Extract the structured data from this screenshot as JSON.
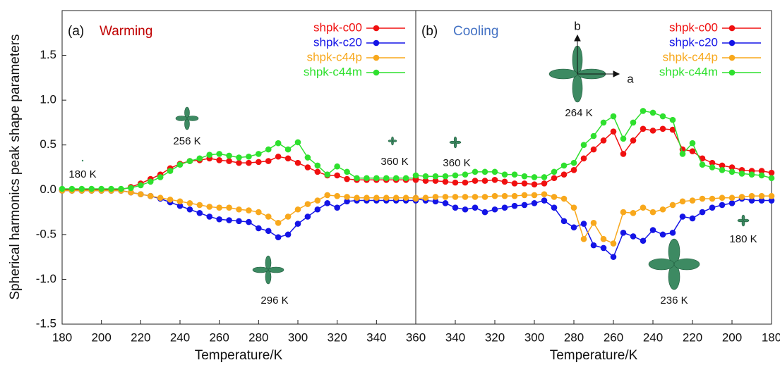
{
  "chart_data": [
    {
      "type": "line",
      "panel": "(a)",
      "title": "Warming",
      "ylabel": "Spherical harmonics peak shape parameters",
      "xlabel": "Temperature/K",
      "xlim": [
        180,
        360
      ],
      "xticks": [
        180,
        200,
        220,
        240,
        260,
        280,
        300,
        320,
        340
      ],
      "ylim": [
        -1.5,
        2.0
      ],
      "yticks": [
        {
          "value": -1.5,
          "label": "-1.5"
        },
        {
          "value": -1,
          "label": "-1.0"
        },
        -0.5,
        {
          "value": 0,
          "label": "0.0"
        },
        0.5,
        {
          "value": 1,
          "label": "1.0"
        },
        1.5
      ],
      "x": [
        180,
        185,
        190,
        195,
        200,
        205,
        210,
        215,
        220,
        225,
        230,
        235,
        240,
        245,
        250,
        255,
        260,
        265,
        270,
        275,
        280,
        285,
        290,
        295,
        300,
        305,
        310,
        315,
        320,
        325,
        330,
        335,
        340,
        345,
        350,
        355,
        360
      ],
      "series": [
        {
          "name": "shpk-c00",
          "color": "#f01010",
          "values": [
            0,
            0,
            0,
            0,
            0,
            0,
            0,
            0.03,
            0.07,
            0.12,
            0.17,
            0.24,
            0.29,
            0.32,
            0.33,
            0.35,
            0.33,
            0.32,
            0.3,
            0.3,
            0.31,
            0.32,
            0.37,
            0.35,
            0.3,
            0.25,
            0.2,
            0.16,
            0.16,
            0.12,
            0.11,
            0.11,
            0.11,
            0.11,
            0.11,
            0.11,
            0.11
          ]
        },
        {
          "name": "shpk-c20",
          "color": "#1414e6",
          "values": [
            -0.01,
            -0.01,
            -0.01,
            -0.01,
            -0.01,
            -0.01,
            -0.01,
            -0.03,
            -0.05,
            -0.07,
            -0.1,
            -0.14,
            -0.18,
            -0.22,
            -0.26,
            -0.3,
            -0.33,
            -0.34,
            -0.35,
            -0.36,
            -0.43,
            -0.46,
            -0.53,
            -0.5,
            -0.38,
            -0.3,
            -0.22,
            -0.15,
            -0.2,
            -0.13,
            -0.12,
            -0.12,
            -0.12,
            -0.12,
            -0.12,
            -0.12,
            -0.12
          ]
        },
        {
          "name": "shpk-c44p",
          "color": "#f8a81c",
          "values": [
            -0.01,
            -0.01,
            -0.01,
            -0.01,
            -0.01,
            -0.01,
            -0.01,
            -0.03,
            -0.05,
            -0.07,
            -0.09,
            -0.11,
            -0.13,
            -0.15,
            -0.17,
            -0.19,
            -0.2,
            -0.2,
            -0.22,
            -0.23,
            -0.25,
            -0.3,
            -0.37,
            -0.3,
            -0.22,
            -0.16,
            -0.12,
            -0.06,
            -0.07,
            -0.08,
            -0.09,
            -0.09,
            -0.09,
            -0.09,
            -0.09,
            -0.09,
            -0.09
          ]
        },
        {
          "name": "shpk-c44m",
          "color": "#2ee02e",
          "values": [
            0.01,
            0.01,
            0.01,
            0.01,
            0.01,
            0.01,
            0.01,
            0.02,
            0.05,
            0.09,
            0.14,
            0.21,
            0.28,
            0.32,
            0.35,
            0.39,
            0.4,
            0.38,
            0.36,
            0.37,
            0.4,
            0.45,
            0.52,
            0.45,
            0.53,
            0.36,
            0.27,
            0.17,
            0.26,
            0.2,
            0.13,
            0.13,
            0.13,
            0.13,
            0.13,
            0.13,
            0.13
          ]
        }
      ],
      "annotations": [
        "256 K",
        "180 K",
        "360 K",
        "296 K"
      ]
    },
    {
      "type": "line",
      "panel": "(b)",
      "title": "Cooling",
      "xlabel": "Temperature/K",
      "xlim": [
        360,
        180
      ],
      "xticks": [
        360,
        340,
        320,
        300,
        280,
        260,
        240,
        220,
        200,
        180
      ],
      "ylim": [
        -1.5,
        2.0
      ],
      "x": [
        360,
        355,
        350,
        345,
        340,
        335,
        330,
        325,
        320,
        315,
        310,
        305,
        300,
        295,
        290,
        285,
        280,
        275,
        270,
        265,
        260,
        255,
        250,
        245,
        240,
        235,
        230,
        225,
        220,
        215,
        210,
        205,
        200,
        195,
        190,
        185,
        180
      ],
      "series": [
        {
          "name": "shpk-c00",
          "color": "#f01010",
          "values": [
            0.12,
            0.1,
            0.1,
            0.09,
            0.08,
            0.08,
            0.1,
            0.1,
            0.11,
            0.09,
            0.07,
            0.07,
            0.06,
            0.07,
            0.13,
            0.17,
            0.22,
            0.35,
            0.45,
            0.55,
            0.65,
            0.4,
            0.55,
            0.68,
            0.66,
            0.68,
            0.67,
            0.45,
            0.43,
            0.35,
            0.3,
            0.27,
            0.25,
            0.22,
            0.21,
            0.21,
            0.19
          ]
        },
        {
          "name": "shpk-c20",
          "color": "#1414e6",
          "values": [
            -0.1,
            -0.12,
            -0.13,
            -0.15,
            -0.2,
            -0.22,
            -0.2,
            -0.25,
            -0.22,
            -0.2,
            -0.18,
            -0.17,
            -0.15,
            -0.12,
            -0.2,
            -0.35,
            -0.42,
            -0.38,
            -0.62,
            -0.65,
            -0.75,
            -0.48,
            -0.52,
            -0.57,
            -0.45,
            -0.5,
            -0.48,
            -0.3,
            -0.32,
            -0.25,
            -0.2,
            -0.17,
            -0.15,
            -0.1,
            -0.12,
            -0.12,
            -0.12
          ]
        },
        {
          "name": "shpk-c44p",
          "color": "#f8a81c",
          "values": [
            -0.1,
            -0.09,
            -0.08,
            -0.08,
            -0.08,
            -0.08,
            -0.08,
            -0.08,
            -0.07,
            -0.07,
            -0.07,
            -0.06,
            -0.06,
            -0.05,
            -0.08,
            -0.1,
            -0.2,
            -0.55,
            -0.37,
            -0.55,
            -0.6,
            -0.25,
            -0.26,
            -0.2,
            -0.25,
            -0.22,
            -0.17,
            -0.13,
            -0.12,
            -0.1,
            -0.1,
            -0.09,
            -0.09,
            -0.08,
            -0.07,
            -0.07,
            -0.07
          ]
        },
        {
          "name": "shpk-c44m",
          "color": "#2ee02e",
          "values": [
            0.16,
            0.15,
            0.15,
            0.15,
            0.16,
            0.17,
            0.2,
            0.2,
            0.2,
            0.17,
            0.17,
            0.15,
            0.14,
            0.14,
            0.2,
            0.27,
            0.3,
            0.5,
            0.6,
            0.75,
            0.82,
            0.57,
            0.75,
            0.88,
            0.86,
            0.82,
            0.78,
            0.4,
            0.52,
            0.28,
            0.25,
            0.22,
            0.2,
            0.18,
            0.17,
            0.16,
            0.13
          ]
        }
      ],
      "annotations": [
        "360 K",
        "264 K",
        "236 K",
        "180 K",
        "b",
        "a"
      ]
    }
  ]
}
